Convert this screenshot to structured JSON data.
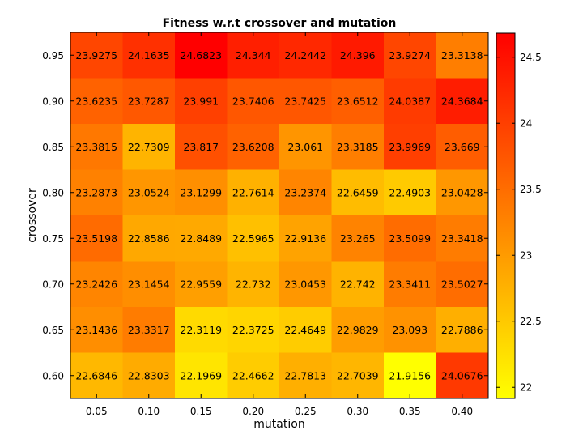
{
  "chart_data": {
    "type": "heatmap",
    "title": "Fitness w.r.t crossover and mutation",
    "xlabel": "mutation",
    "ylabel": "crossover",
    "x": [
      "0.05",
      "0.10",
      "0.15",
      "0.20",
      "0.25",
      "0.30",
      "0.35",
      "0.40"
    ],
    "y": [
      "0.95",
      "0.90",
      "0.85",
      "0.80",
      "0.75",
      "0.70",
      "0.65",
      "0.60"
    ],
    "values": [
      [
        23.9275,
        24.1635,
        24.6823,
        24.344,
        24.2442,
        24.396,
        23.9274,
        23.3138
      ],
      [
        23.6235,
        23.7287,
        23.991,
        23.7406,
        23.7425,
        23.6512,
        24.0387,
        24.3684
      ],
      [
        23.3815,
        22.7309,
        23.817,
        23.6208,
        23.061,
        23.3185,
        23.9969,
        23.669
      ],
      [
        23.2873,
        23.0524,
        23.1299,
        22.7614,
        23.2374,
        22.6459,
        22.4903,
        23.0428
      ],
      [
        23.5198,
        22.8586,
        22.8489,
        22.5965,
        22.9136,
        23.265,
        23.5099,
        23.3418
      ],
      [
        23.2426,
        23.1454,
        22.9559,
        22.732,
        23.0453,
        22.742,
        23.3411,
        23.5027
      ],
      [
        23.1436,
        23.3317,
        22.3119,
        22.3725,
        22.4649,
        22.9829,
        23.093,
        22.7886
      ],
      [
        22.6846,
        22.8303,
        22.1969,
        22.4662,
        22.7813,
        22.7039,
        21.9156,
        24.0676
      ]
    ],
    "value_labels": [
      [
        "23.9275",
        "24.1635",
        "24.6823",
        "24.344",
        "24.2442",
        "24.396",
        "23.9274",
        "23.3138"
      ],
      [
        "23.6235",
        "23.7287",
        "23.991",
        "23.7406",
        "23.7425",
        "23.6512",
        "24.0387",
        "24.3684"
      ],
      [
        "23.3815",
        "22.7309",
        "23.817",
        "23.6208",
        "23.061",
        "23.3185",
        "23.9969",
        "23.669"
      ],
      [
        "23.2873",
        "23.0524",
        "23.1299",
        "22.7614",
        "23.2374",
        "22.6459",
        "22.4903",
        "23.0428"
      ],
      [
        "23.5198",
        "22.8586",
        "22.8489",
        "22.5965",
        "22.9136",
        "23.265",
        "23.5099",
        "23.3418"
      ],
      [
        "23.2426",
        "23.1454",
        "22.9559",
        "22.732",
        "23.0453",
        "22.742",
        "23.3411",
        "23.5027"
      ],
      [
        "23.1436",
        "23.3317",
        "22.3119",
        "22.3725",
        "22.4649",
        "22.9829",
        "23.093",
        "22.7886"
      ],
      [
        "22.6846",
        "22.8303",
        "22.1969",
        "22.4662",
        "22.7813",
        "22.7039",
        "21.9156",
        "24.0676"
      ]
    ],
    "colorbar": {
      "colormap": "autumn-reversed",
      "low_color": "#ffff00",
      "high_color": "#ff0000",
      "range": [
        21.9156,
        24.6823
      ],
      "ticks": [
        22,
        22.5,
        23,
        23.5,
        24,
        24.5
      ],
      "tick_labels": [
        "22",
        "22.5",
        "23",
        "23.5",
        "24",
        "24.5"
      ]
    },
    "legend": "colorbar-right",
    "grid": false
  }
}
